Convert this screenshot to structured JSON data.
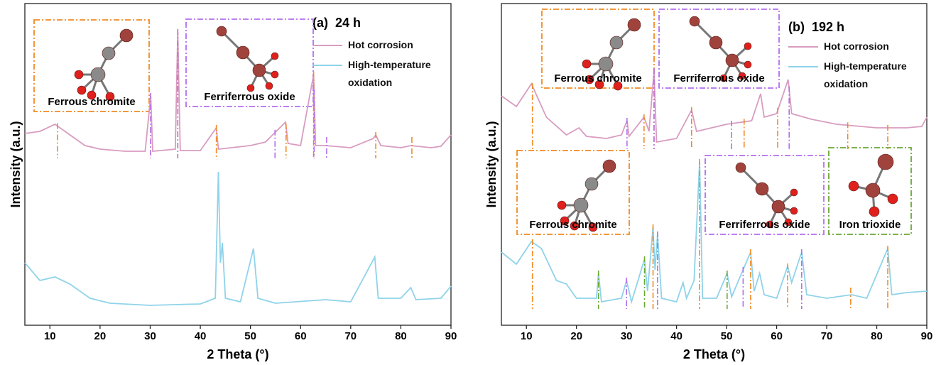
{
  "chart_data": [
    {
      "type": "line",
      "subtitle": "(a)  24 h",
      "xlabel": "2 Theta (°)",
      "ylabel": "Intensity (a.u.)",
      "xlim": [
        5,
        90
      ],
      "ylim": [
        0,
        453
      ],
      "xticks": [
        10,
        20,
        30,
        40,
        50,
        60,
        70,
        80,
        90
      ],
      "annotations": [
        {
          "text": "Ferrous chromite",
          "color": "#f08a24"
        },
        {
          "text": "Ferriferrous oxide",
          "color": "#b36ef0"
        }
      ],
      "series": [
        {
          "name": "Hot corrosion",
          "color": "#d99cc0",
          "x": [
            5,
            8,
            11,
            14,
            17,
            20,
            25,
            29,
            30.1,
            30.5,
            35,
            35.5,
            36,
            40,
            43.2,
            43.6,
            50,
            53,
            57,
            57.5,
            60,
            62.6,
            63,
            65,
            70,
            74.5,
            75,
            76,
            80,
            82,
            86,
            88,
            90
          ],
          "values": [
            270,
            273,
            283,
            268,
            253,
            248,
            245,
            245,
            323,
            245,
            248,
            413,
            246,
            246,
            278,
            248,
            253,
            258,
            286,
            256,
            253,
            353,
            253,
            253,
            250,
            263,
            268,
            253,
            250,
            253,
            250,
            252,
            268
          ],
          "phase_peaks": [
            {
              "color": "#f08a24",
              "positions": [
                11.5,
                30.1,
                35.5,
                43.2,
                57.1,
                62.6,
                75,
                82.2
              ]
            },
            {
              "color": "#b36ef0",
              "positions": [
                30.1,
                35.5,
                54.9,
                62.7,
                65.2
              ]
            }
          ]
        },
        {
          "name": "High-temperature oxidation",
          "color": "#8fd3ea",
          "x": [
            5,
            8,
            11,
            14,
            18,
            22,
            30,
            40,
            43,
            43.6,
            44,
            44.4,
            45,
            48,
            50.6,
            51.5,
            55,
            65,
            70,
            74.8,
            75.5,
            80,
            82,
            83,
            88,
            90
          ],
          "values": [
            88,
            63,
            68,
            58,
            38,
            31,
            28,
            30,
            38,
            216,
            88,
            116,
            38,
            33,
            108,
            38,
            31,
            36,
            33,
            96,
            38,
            38,
            53,
            36,
            38,
            55
          ]
        }
      ]
    },
    {
      "type": "line",
      "subtitle": "(b)  192 h",
      "xlabel": "2 Theta (°)",
      "ylabel": "Intensity (a.u.)",
      "xlim": [
        5,
        90
      ],
      "ylim": [
        0,
        453
      ],
      "xticks": [
        10,
        20,
        30,
        40,
        50,
        60,
        70,
        80,
        90
      ],
      "annotations": [
        {
          "text": "Ferrous chromite",
          "color": "#f08a24"
        },
        {
          "text": "Ferriferrous oxide",
          "color": "#b36ef0"
        },
        {
          "text": "Ferrous chromite",
          "color": "#f08a24"
        },
        {
          "text": "Ferriferrous oxide",
          "color": "#b36ef0"
        },
        {
          "text": "Iron trioxide",
          "color": "#6aa834"
        }
      ],
      "series": [
        {
          "name": "Hot corrosion",
          "color": "#d99cc0",
          "x": [
            5,
            8,
            11,
            14,
            18,
            20.5,
            22,
            26,
            29,
            30.1,
            30.5,
            33.5,
            34.5,
            35.5,
            36,
            40,
            43,
            44,
            50,
            55,
            56.8,
            57.5,
            60,
            62.3,
            63,
            67,
            72,
            80,
            86,
            89,
            90
          ],
          "values": [
            323,
            308,
            340,
            293,
            268,
            278,
            266,
            263,
            268,
            288,
            266,
            293,
            273,
            358,
            258,
            263,
            303,
            273,
            283,
            288,
            326,
            293,
            298,
            346,
            298,
            290,
            283,
            278,
            278,
            280,
            293
          ],
          "phase_peaks": [
            {
              "color": "#f08a24",
              "positions": [
                11.2,
                33.5,
                35.5,
                43,
                53.5,
                60.2,
                74.2,
                82.2
              ]
            },
            {
              "color": "#b36ef0",
              "positions": [
                30.1,
                35.5,
                51,
                62.5
              ]
            }
          ]
        },
        {
          "name": "High-temperature oxidation",
          "color": "#8fd3ea",
          "x": [
            5,
            8,
            11,
            13,
            16,
            18,
            20,
            24,
            24.4,
            25,
            29,
            30,
            31,
            33.6,
            34.2,
            35.3,
            35.7,
            36.2,
            37,
            40,
            41.3,
            42,
            43.5,
            44.6,
            45.2,
            48,
            50.1,
            51,
            54.8,
            55.5,
            56.6,
            57.5,
            60,
            62.2,
            63,
            65,
            66,
            70,
            75,
            78,
            82.2,
            83,
            86,
            90
          ],
          "values": [
            103,
            86,
            118,
            108,
            63,
            58,
            38,
            38,
            73,
            33,
            38,
            63,
            33,
            93,
            48,
            138,
            78,
            128,
            38,
            33,
            60,
            38,
            63,
            230,
            38,
            38,
            73,
            40,
            103,
            48,
            73,
            43,
            38,
            83,
            60,
            103,
            43,
            38,
            43,
            38,
            108,
            43,
            46,
            48
          ],
          "phase_peaks": [
            {
              "color": "#f08a24",
              "positions": [
                11.2,
                35.3,
                44.6,
                54.8,
                62.2,
                74.8,
                82.2
              ]
            },
            {
              "color": "#b36ef0",
              "positions": [
                30,
                36.2,
                53.3,
                65
              ]
            },
            {
              "color": "#6aa834",
              "positions": [
                24.4,
                33.6,
                50.1
              ]
            }
          ]
        }
      ]
    }
  ]
}
